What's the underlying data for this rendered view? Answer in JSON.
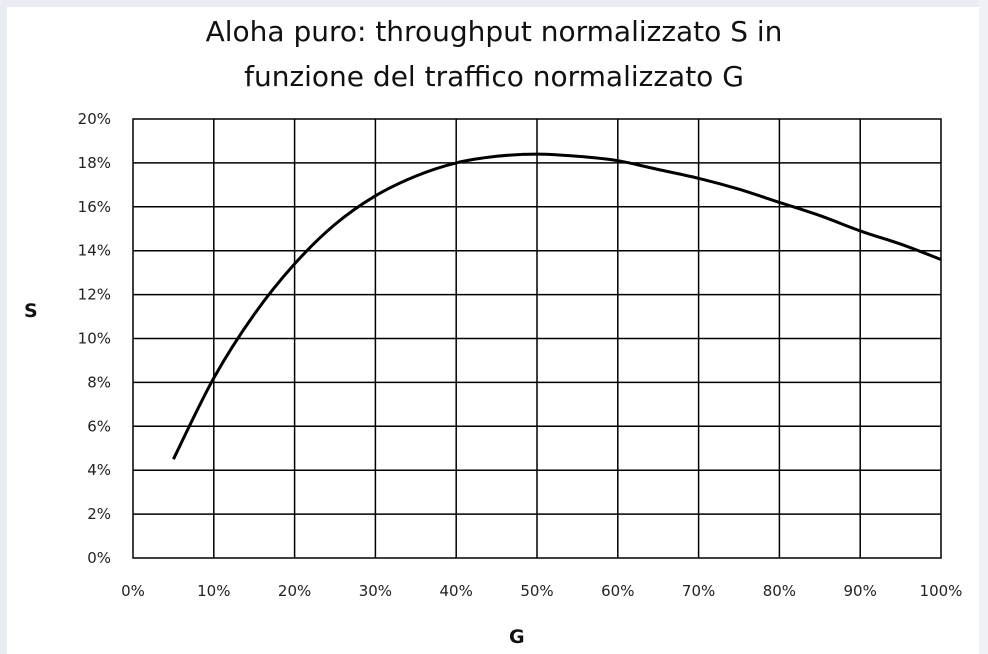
{
  "chart_data": {
    "type": "line",
    "title": "Aloha puro: throughput normalizzato S in funzione del traffico normalizzato G",
    "title_lines": [
      "Aloha puro: throughput normalizzato S in",
      "funzione del traffico normalizzato G"
    ],
    "xlabel": "G",
    "ylabel": "S",
    "xlim": [
      0,
      100
    ],
    "ylim": [
      0,
      20
    ],
    "x_tick_labels": [
      "0%",
      "10%",
      "20%",
      "30%",
      "40%",
      "50%",
      "60%",
      "70%",
      "80%",
      "90%",
      "100%"
    ],
    "y_tick_labels": [
      "0%",
      "2%",
      "4%",
      "6%",
      "8%",
      "10%",
      "12%",
      "14%",
      "16%",
      "18%",
      "20%"
    ],
    "grid": true,
    "series": [
      {
        "x": [
          5,
          10,
          15,
          20,
          25,
          30,
          35,
          40,
          45,
          50,
          55,
          60,
          65,
          70,
          75,
          80,
          85,
          90,
          95,
          100
        ],
        "y": [
          4.5,
          8.2,
          11.1,
          13.4,
          15.2,
          16.5,
          17.4,
          18.0,
          18.3,
          18.4,
          18.3,
          18.1,
          17.7,
          17.3,
          16.8,
          16.2,
          15.6,
          14.9,
          14.3,
          13.6
        ]
      }
    ],
    "line_color": "#000000",
    "grid_color": "#000000"
  }
}
